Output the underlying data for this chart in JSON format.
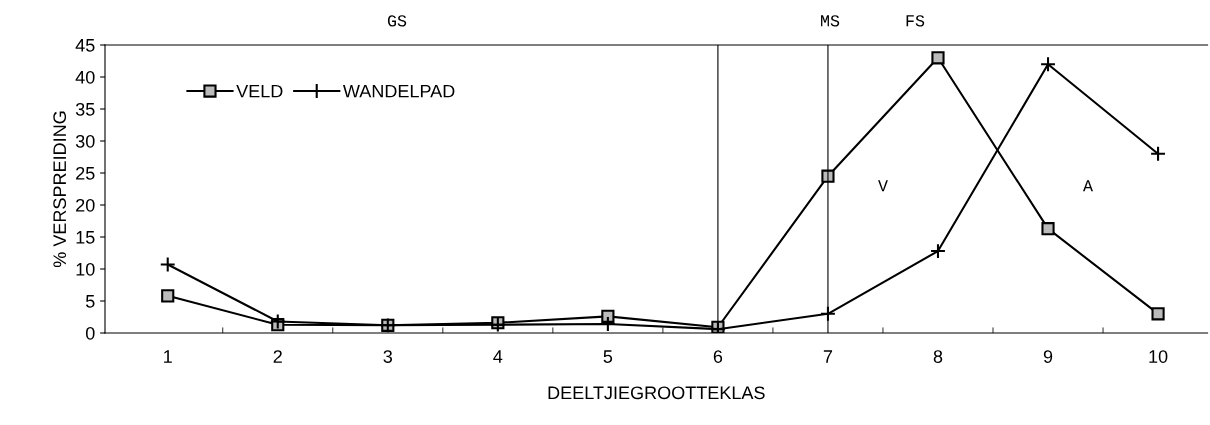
{
  "chart_data": {
    "type": "line",
    "xlabel": "DEELTJIEGROOTTEKLAS",
    "ylabel": "% VERSPREIDING",
    "categories": [
      "1",
      "2",
      "3",
      "4",
      "5",
      "6",
      "7",
      "8",
      "9",
      "10"
    ],
    "series": [
      {
        "name": "VELD",
        "color": "#000000",
        "marker": "square",
        "values": [
          5.8,
          1.3,
          1.2,
          1.6,
          2.6,
          0.9,
          24.5,
          43,
          16.3,
          3
        ]
      },
      {
        "name": "WANDELPAD",
        "color": "#000000",
        "marker": "cross",
        "values": [
          10.7,
          1.8,
          1.2,
          1.3,
          1.4,
          0.6,
          3,
          12.8,
          42,
          28
        ]
      }
    ],
    "ylim": [
      0,
      45
    ],
    "yticks": [
      0,
      5,
      10,
      15,
      20,
      25,
      30,
      35,
      40,
      45
    ],
    "ref_lines": [
      {
        "axis": "x",
        "value": "6",
        "color": "#000000"
      },
      {
        "axis": "x",
        "value": "7",
        "color": "#000000"
      }
    ],
    "annotations": [
      "GS",
      "MS",
      "FS",
      "V",
      "A"
    ],
    "legend": "top left",
    "grid": false,
    "line_style": "solid"
  }
}
